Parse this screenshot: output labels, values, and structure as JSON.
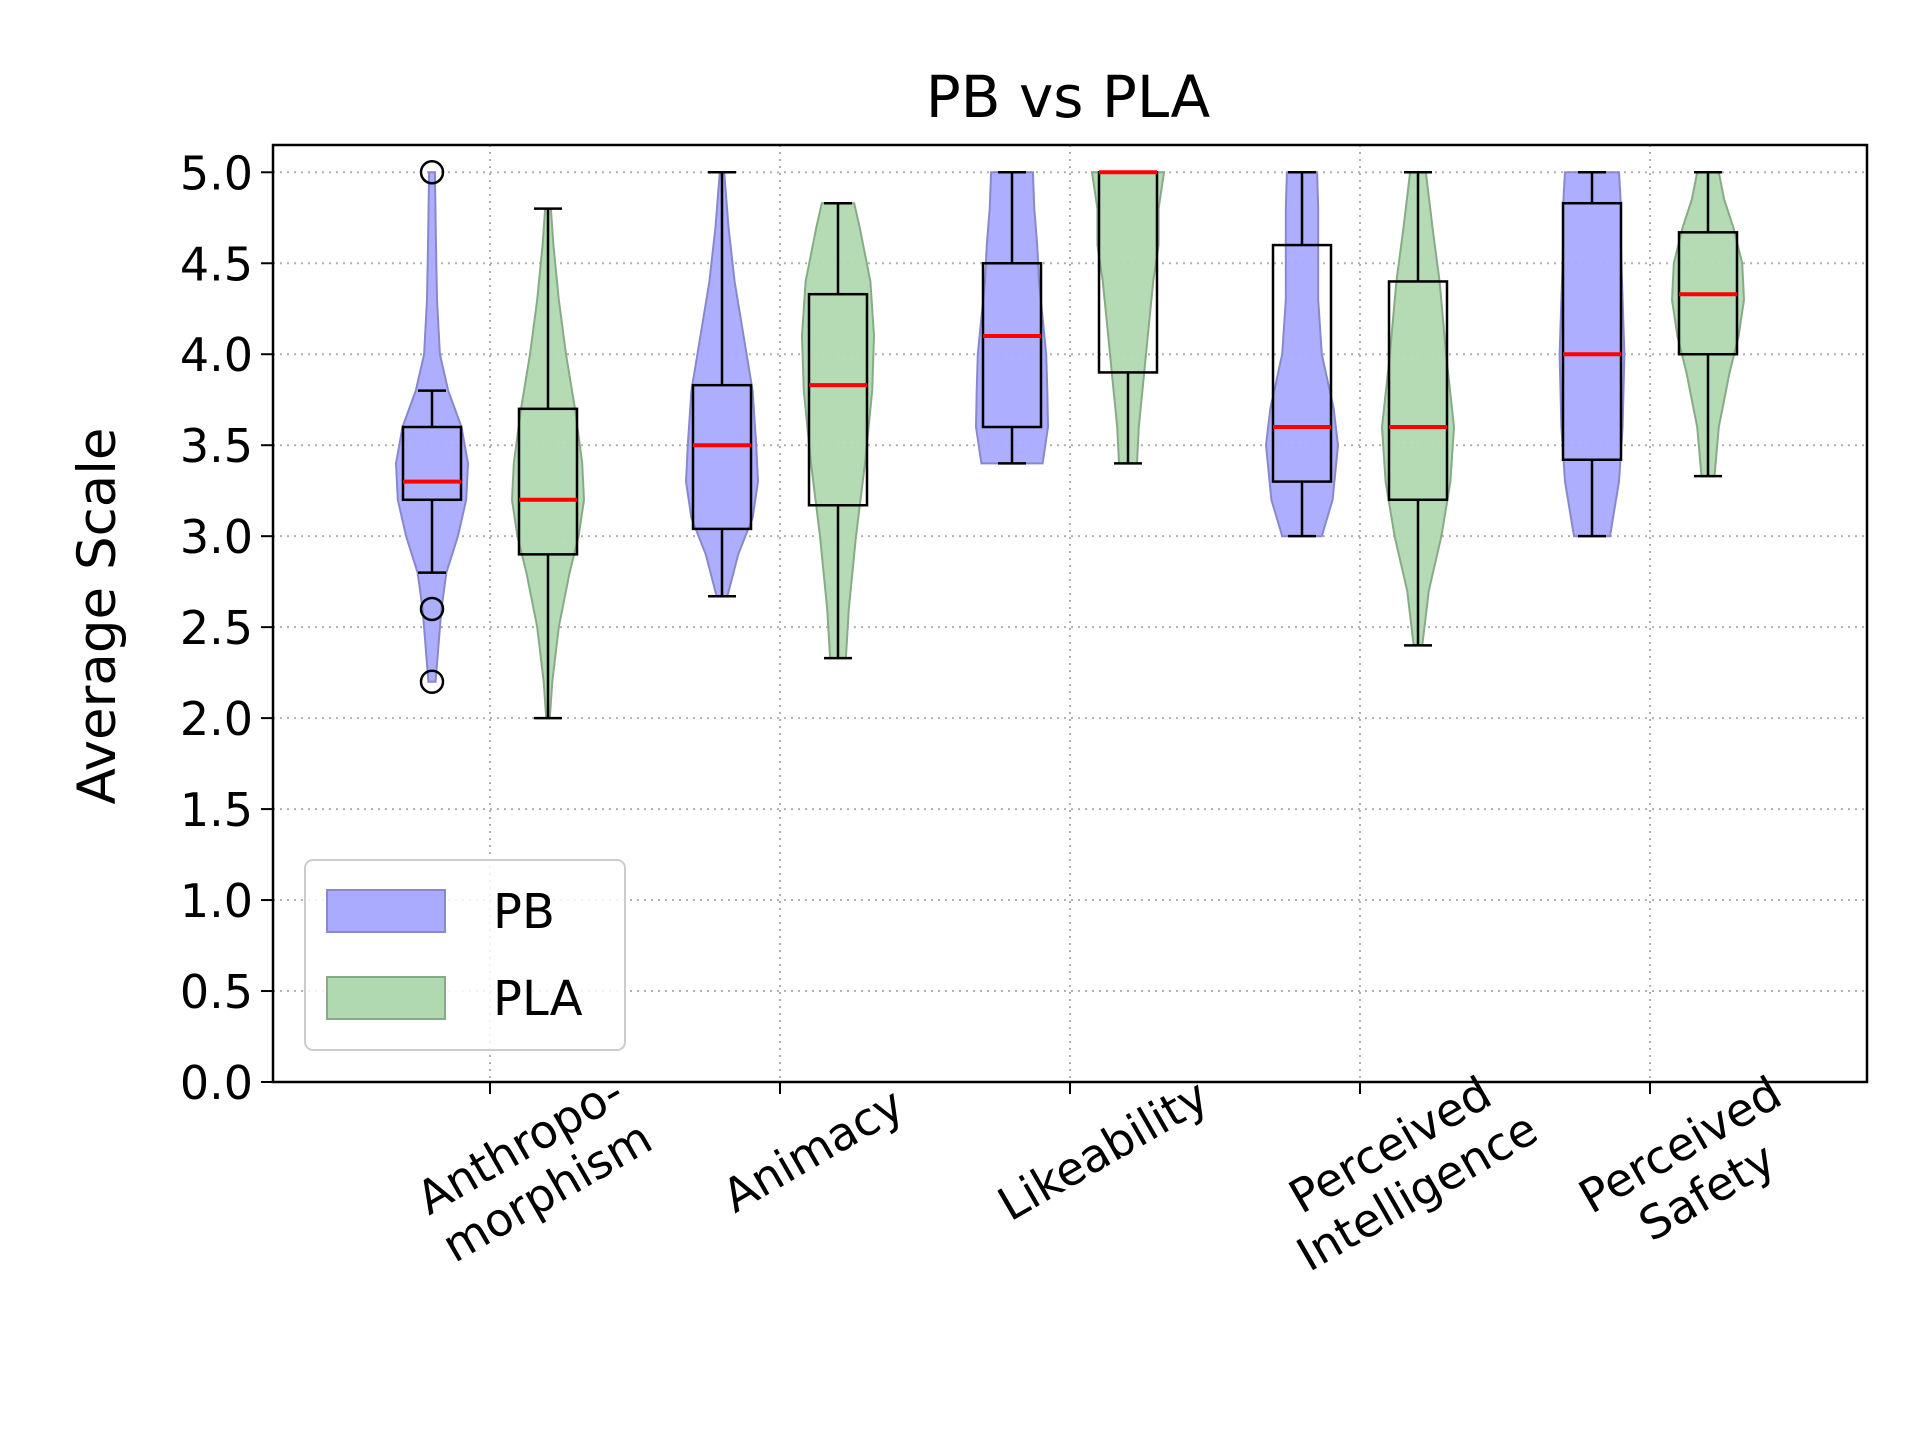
{
  "chart_data": {
    "type": "violin+box",
    "title": "PB vs PLA",
    "ylabel": "Average Scale",
    "xlabel": "",
    "ylim": [
      0,
      5.15
    ],
    "yticks": [
      "0.0",
      "0.5",
      "1.0",
      "1.5",
      "2.0",
      "2.5",
      "3.0",
      "3.5",
      "4.0",
      "4.5",
      "5.0"
    ],
    "grid": true,
    "legend_position": "lower-left",
    "categories": [
      {
        "lines": [
          "Anthropo-",
          "morphism"
        ]
      },
      {
        "lines": [
          "Animacy"
        ]
      },
      {
        "lines": [
          "Likeability"
        ]
      },
      {
        "lines": [
          "Perceived",
          "Intelligence"
        ]
      },
      {
        "lines": [
          "Perceived",
          "Safety"
        ]
      }
    ],
    "series": [
      {
        "name": "PB",
        "fill": "#aaaaff",
        "stroke": "#8888cc",
        "stats": [
          {
            "min": 2.8,
            "q1": 3.2,
            "median": 3.3,
            "q3": 3.6,
            "max": 3.8,
            "outliers": [
              5.0,
              2.6,
              2.2
            ],
            "violin": [
              [
                2.2,
                0.1
              ],
              [
                2.4,
                0.18
              ],
              [
                2.6,
                0.26
              ],
              [
                2.8,
                0.4
              ],
              [
                3.0,
                0.72
              ],
              [
                3.2,
                0.95
              ],
              [
                3.4,
                1.0
              ],
              [
                3.6,
                0.82
              ],
              [
                3.8,
                0.45
              ],
              [
                4.0,
                0.22
              ],
              [
                4.3,
                0.14
              ],
              [
                4.6,
                0.11
              ],
              [
                5.0,
                0.08
              ]
            ]
          },
          {
            "min": 2.67,
            "q1": 3.04,
            "median": 3.5,
            "q3": 3.83,
            "max": 5.0,
            "outliers": [],
            "violin": [
              [
                2.67,
                0.15
              ],
              [
                2.9,
                0.45
              ],
              [
                3.1,
                0.85
              ],
              [
                3.3,
                1.0
              ],
              [
                3.5,
                0.95
              ],
              [
                3.8,
                0.85
              ],
              [
                4.1,
                0.6
              ],
              [
                4.4,
                0.35
              ],
              [
                4.7,
                0.18
              ],
              [
                5.0,
                0.06
              ]
            ]
          },
          {
            "min": 3.4,
            "q1": 3.6,
            "median": 4.1,
            "q3": 4.5,
            "max": 5.0,
            "outliers": [],
            "violin": [
              [
                3.4,
                0.85
              ],
              [
                3.6,
                1.0
              ],
              [
                3.8,
                0.98
              ],
              [
                4.0,
                0.95
              ],
              [
                4.2,
                0.85
              ],
              [
                4.4,
                0.75
              ],
              [
                4.6,
                0.7
              ],
              [
                4.8,
                0.62
              ],
              [
                5.0,
                0.58
              ]
            ]
          },
          {
            "min": 3.0,
            "q1": 3.3,
            "median": 3.6,
            "q3": 4.6,
            "max": 5.0,
            "outliers": [],
            "violin": [
              [
                3.0,
                0.55
              ],
              [
                3.2,
                0.85
              ],
              [
                3.5,
                1.0
              ],
              [
                3.7,
                0.88
              ],
              [
                4.0,
                0.55
              ],
              [
                4.3,
                0.45
              ],
              [
                4.6,
                0.45
              ],
              [
                4.8,
                0.45
              ],
              [
                5.0,
                0.42
              ]
            ]
          },
          {
            "min": 3.0,
            "q1": 3.42,
            "median": 4.0,
            "q3": 4.83,
            "max": 5.0,
            "outliers": [],
            "violin": [
              [
                3.0,
                0.5
              ],
              [
                3.3,
                0.75
              ],
              [
                3.6,
                0.85
              ],
              [
                4.0,
                0.9
              ],
              [
                4.3,
                0.85
              ],
              [
                4.6,
                0.8
              ],
              [
                4.83,
                0.8
              ],
              [
                5.0,
                0.75
              ]
            ]
          }
        ]
      },
      {
        "name": "PLA",
        "fill": "#b0d9b0",
        "stroke": "#88aa88",
        "stats": [
          {
            "min": 2.0,
            "q1": 2.9,
            "median": 3.2,
            "q3": 3.7,
            "max": 4.8,
            "outliers": [],
            "violin": [
              [
                2.0,
                0.05
              ],
              [
                2.2,
                0.12
              ],
              [
                2.5,
                0.3
              ],
              [
                2.8,
                0.6
              ],
              [
                3.0,
                0.85
              ],
              [
                3.2,
                1.0
              ],
              [
                3.4,
                0.95
              ],
              [
                3.7,
                0.75
              ],
              [
                4.0,
                0.5
              ],
              [
                4.3,
                0.3
              ],
              [
                4.6,
                0.15
              ],
              [
                4.8,
                0.08
              ]
            ]
          },
          {
            "min": 2.33,
            "q1": 3.17,
            "median": 3.83,
            "q3": 4.33,
            "max": 4.83,
            "outliers": [],
            "violin": [
              [
                2.33,
                0.22
              ],
              [
                2.6,
                0.3
              ],
              [
                3.0,
                0.5
              ],
              [
                3.4,
                0.75
              ],
              [
                3.8,
                0.95
              ],
              [
                4.1,
                1.0
              ],
              [
                4.4,
                0.9
              ],
              [
                4.7,
                0.6
              ],
              [
                4.83,
                0.45
              ]
            ]
          },
          {
            "min": 3.4,
            "q1": 3.9,
            "median": 5.0,
            "q3": 5.0,
            "max": 5.0,
            "outliers": [],
            "violin": [
              [
                3.4,
                0.25
              ],
              [
                3.6,
                0.3
              ],
              [
                3.8,
                0.4
              ],
              [
                4.0,
                0.5
              ],
              [
                4.2,
                0.6
              ],
              [
                4.4,
                0.7
              ],
              [
                4.6,
                0.85
              ],
              [
                4.8,
                0.85
              ],
              [
                5.0,
                1.0
              ]
            ]
          },
          {
            "min": 2.4,
            "q1": 3.2,
            "median": 3.6,
            "q3": 4.4,
            "max": 5.0,
            "outliers": [],
            "violin": [
              [
                2.4,
                0.12
              ],
              [
                2.7,
                0.3
              ],
              [
                3.0,
                0.65
              ],
              [
                3.3,
                0.9
              ],
              [
                3.6,
                1.0
              ],
              [
                4.0,
                0.78
              ],
              [
                4.4,
                0.6
              ],
              [
                4.7,
                0.4
              ],
              [
                5.0,
                0.22
              ]
            ]
          },
          {
            "min": 3.33,
            "q1": 4.0,
            "median": 4.33,
            "q3": 4.67,
            "max": 5.0,
            "outliers": [],
            "violin": [
              [
                3.33,
                0.18
              ],
              [
                3.6,
                0.3
              ],
              [
                3.9,
                0.6
              ],
              [
                4.1,
                0.85
              ],
              [
                4.3,
                1.0
              ],
              [
                4.5,
                0.95
              ],
              [
                4.7,
                0.7
              ],
              [
                4.85,
                0.45
              ],
              [
                5.0,
                0.3
              ]
            ]
          }
        ]
      }
    ]
  }
}
